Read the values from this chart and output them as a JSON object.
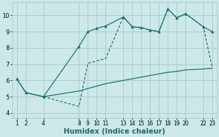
{
  "bg_color": "#cce8e8",
  "grid_color": "#aacccc",
  "line_color": "#1a6b6b",
  "xlabel": "Humidex (Indice chaleur)",
  "xlabel_fontsize": 7.5,
  "yticks": [
    4,
    5,
    6,
    7,
    8,
    9,
    10
  ],
  "xticks": [
    1,
    2,
    4,
    8,
    9,
    10,
    11,
    13,
    14,
    15,
    16,
    17,
    18,
    19,
    20,
    22,
    23
  ],
  "xlim": [
    0.5,
    23.5
  ],
  "ylim": [
    3.7,
    10.8
  ],
  "line1_x": [
    1,
    2,
    4,
    8,
    9,
    10,
    11,
    13,
    14,
    15,
    16,
    17,
    18,
    19,
    20,
    22,
    23
  ],
  "line1_y": [
    6.1,
    5.25,
    5.0,
    5.35,
    5.5,
    5.65,
    5.8,
    6.0,
    6.1,
    6.2,
    6.3,
    6.4,
    6.5,
    6.55,
    6.65,
    6.7,
    6.75
  ],
  "line2_x": [
    1,
    2,
    4,
    8,
    9,
    10,
    11,
    13,
    14,
    15,
    16,
    17,
    18,
    19,
    20,
    22,
    23
  ],
  "line2_y": [
    6.1,
    5.25,
    5.0,
    8.1,
    9.0,
    9.2,
    9.35,
    9.9,
    9.3,
    9.25,
    9.1,
    9.0,
    10.4,
    9.85,
    10.1,
    9.3,
    9.0
  ],
  "line3_x": [
    4,
    8,
    9,
    10,
    11,
    13,
    14,
    15,
    16,
    17,
    18,
    19,
    20,
    22,
    23
  ],
  "line3_y": [
    5.0,
    4.4,
    7.05,
    7.2,
    7.35,
    9.9,
    9.3,
    9.25,
    9.1,
    9.0,
    10.4,
    9.85,
    10.1,
    9.3,
    6.8
  ]
}
